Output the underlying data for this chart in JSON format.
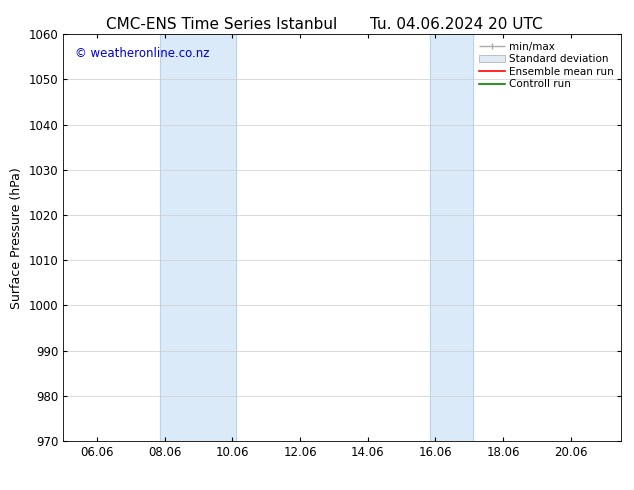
{
  "title_left": "CMC-ENS Time Series Istanbul",
  "title_right": "Tu. 04.06.2024 20 UTC",
  "ylabel": "Surface Pressure (hPa)",
  "ylim": [
    970,
    1060
  ],
  "yticks": [
    970,
    980,
    990,
    1000,
    1010,
    1020,
    1030,
    1040,
    1050,
    1060
  ],
  "xlim_start": 5.0,
  "xlim_end": 21.5,
  "xtick_labels": [
    "06.06",
    "08.06",
    "10.06",
    "12.06",
    "14.06",
    "16.06",
    "18.06",
    "20.06"
  ],
  "xtick_positions": [
    6,
    8,
    10,
    12,
    14,
    16,
    18,
    20
  ],
  "shaded_bands": [
    {
      "xstart": 7.85,
      "xend": 10.1
    },
    {
      "xstart": 15.85,
      "xend": 17.1
    }
  ],
  "shaded_color": "#daeaf8",
  "shaded_edge_color": "#b8d4ea",
  "copyright_text": "© weatheronline.co.nz",
  "copyright_color": "#0000cc",
  "copyright_fontsize": 8.5,
  "title_fontsize": 11,
  "legend_labels": [
    "min/max",
    "Standard deviation",
    "Ensemble mean run",
    "Controll run"
  ],
  "legend_colors_line": [
    "#aaaaaa",
    "#cccccc",
    "#ff0000",
    "#008000"
  ],
  "bg_color": "#ffffff",
  "plot_bg_color": "#f8f8ff",
  "grid_color": "#cccccc",
  "axis_label_fontsize": 9,
  "tick_fontsize": 8.5
}
